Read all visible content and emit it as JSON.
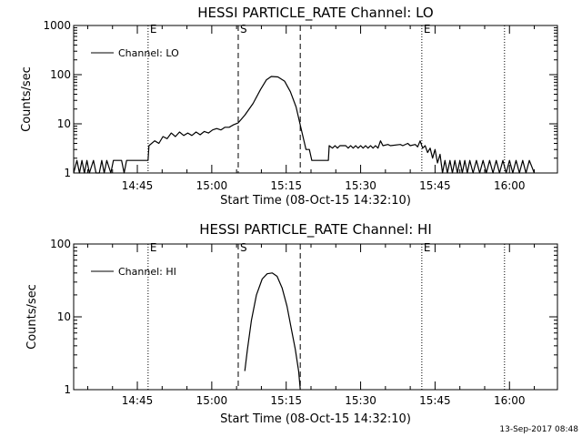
{
  "footer": {
    "timestamp": "13-Sep-2017 08:48"
  },
  "chart_data": [
    {
      "type": "line",
      "title": "HESSI PARTICLE_RATE Channel: LO",
      "xlabel": "Start Time (08-Oct-15 14:32:10)",
      "ylabel": "Counts/sec",
      "xlim": [
        "14:32:10",
        "16:09:40"
      ],
      "ylim": [
        1,
        1000
      ],
      "yscale": "log",
      "x_ticks": [
        "14:45",
        "15:00",
        "15:15",
        "15:30",
        "15:45",
        "16:00"
      ],
      "y_ticks": [
        {
          "value": 1,
          "label": "1"
        },
        {
          "value": 10,
          "label": "10"
        },
        {
          "value": 100,
          "label": "100"
        },
        {
          "value": 1000,
          "label": "1000"
        }
      ],
      "legend": {
        "placement": "top-left",
        "entries": [
          "Channel: LO"
        ]
      },
      "vlines": [
        {
          "time": "14:47:10",
          "style": "dotted",
          "label": "E"
        },
        {
          "time": "15:05:20",
          "style": "dashed",
          "label": "S"
        },
        {
          "time": "15:17:50",
          "style": "dashed",
          "label": ""
        },
        {
          "time": "15:42:20",
          "style": "dotted",
          "label": "E"
        },
        {
          "time": "15:59:00",
          "style": "dotted",
          "label": ""
        }
      ],
      "series": [
        {
          "name": "Channel: LO",
          "points": [
            [
              "14:32:10",
              1
            ],
            [
              "14:32:50",
              1.8
            ],
            [
              "14:33:20",
              1
            ],
            [
              "14:33:50",
              1.8
            ],
            [
              "14:34:20",
              1
            ],
            [
              "14:34:50",
              1.8
            ],
            [
              "14:35:20",
              1
            ],
            [
              "14:36:10",
              1.8
            ],
            [
              "14:36:40",
              1
            ],
            [
              "14:37:20",
              1
            ],
            [
              "14:37:50",
              1.8
            ],
            [
              "14:38:20",
              1
            ],
            [
              "14:38:50",
              1.8
            ],
            [
              "14:39:40",
              1
            ],
            [
              "14:40:10",
              1.8
            ],
            [
              "14:41:50",
              1.8
            ],
            [
              "14:42:20",
              1
            ],
            [
              "14:42:50",
              1.8
            ],
            [
              "14:47:10",
              1.8
            ],
            [
              "14:47:20",
              3.6
            ],
            [
              "14:48:30",
              4.5
            ],
            [
              "14:49:20",
              4
            ],
            [
              "14:50:10",
              5.5
            ],
            [
              "14:51:00",
              5
            ],
            [
              "14:51:50",
              6.5
            ],
            [
              "14:52:40",
              5.5
            ],
            [
              "14:53:30",
              6.8
            ],
            [
              "14:54:20",
              5.8
            ],
            [
              "14:55:10",
              6.5
            ],
            [
              "14:56:00",
              5.8
            ],
            [
              "14:56:50",
              6.8
            ],
            [
              "14:57:40",
              6
            ],
            [
              "14:58:30",
              7
            ],
            [
              "14:59:20",
              6.5
            ],
            [
              "15:00:10",
              7.5
            ],
            [
              "15:01:00",
              8
            ],
            [
              "15:01:50",
              7.5
            ],
            [
              "15:02:40",
              8.5
            ],
            [
              "15:03:30",
              8.5
            ],
            [
              "15:04:20",
              9.5
            ],
            [
              "15:05:20",
              10.5
            ],
            [
              "15:06:40",
              15
            ],
            [
              "15:08:20",
              26
            ],
            [
              "15:09:50",
              50
            ],
            [
              "15:11:00",
              78
            ],
            [
              "15:12:00",
              92
            ],
            [
              "15:13:20",
              90
            ],
            [
              "15:14:40",
              74
            ],
            [
              "15:15:50",
              45
            ],
            [
              "15:17:00",
              22
            ],
            [
              "15:18:00",
              8
            ],
            [
              "15:19:00",
              3
            ],
            [
              "15:19:40",
              3
            ],
            [
              "15:20:10",
              1.8
            ],
            [
              "15:23:30",
              1.8
            ],
            [
              "15:23:40",
              3.6
            ],
            [
              "15:24:20",
              3.2
            ],
            [
              "15:24:50",
              3.6
            ],
            [
              "15:25:20",
              3.2
            ],
            [
              "15:25:50",
              3.6
            ],
            [
              "15:27:00",
              3.6
            ],
            [
              "15:27:30",
              3.2
            ],
            [
              "15:28:00",
              3.6
            ],
            [
              "15:28:30",
              3.2
            ],
            [
              "15:29:00",
              3.6
            ],
            [
              "15:29:30",
              3.2
            ],
            [
              "15:30:00",
              3.6
            ],
            [
              "15:30:30",
              3.2
            ],
            [
              "15:31:00",
              3.6
            ],
            [
              "15:31:30",
              3.2
            ],
            [
              "15:32:00",
              3.6
            ],
            [
              "15:32:30",
              3.2
            ],
            [
              "15:33:00",
              3.6
            ],
            [
              "15:33:30",
              3.2
            ],
            [
              "15:34:00",
              4.5
            ],
            [
              "15:34:30",
              3.6
            ],
            [
              "15:35:30",
              3.8
            ],
            [
              "15:36:00",
              3.6
            ],
            [
              "15:38:00",
              3.8
            ],
            [
              "15:38:30",
              3.6
            ],
            [
              "15:39:30",
              4
            ],
            [
              "15:40:00",
              3.6
            ],
            [
              "15:41:00",
              3.8
            ],
            [
              "15:41:30",
              3.4
            ],
            [
              "15:42:00",
              4.5
            ],
            [
              "15:42:30",
              3.2
            ],
            [
              "15:43:00",
              3.6
            ],
            [
              "15:43:30",
              2.6
            ],
            [
              "15:44:00",
              3.2
            ],
            [
              "15:44:30",
              2
            ],
            [
              "15:45:00",
              3
            ],
            [
              "15:45:30",
              1.6
            ],
            [
              "15:46:00",
              2.4
            ],
            [
              "15:46:30",
              1
            ],
            [
              "15:47:00",
              1.8
            ],
            [
              "15:47:30",
              1
            ],
            [
              "15:48:00",
              1.8
            ],
            [
              "15:48:30",
              1
            ],
            [
              "15:49:00",
              1.8
            ],
            [
              "15:49:30",
              1
            ],
            [
              "15:50:00",
              1.8
            ],
            [
              "15:50:30",
              1
            ],
            [
              "15:51:00",
              1.8
            ],
            [
              "15:51:30",
              1
            ],
            [
              "15:52:00",
              1.8
            ],
            [
              "15:52:40",
              1
            ],
            [
              "15:53:20",
              1.8
            ],
            [
              "15:54:00",
              1
            ],
            [
              "15:54:40",
              1.8
            ],
            [
              "15:55:20",
              1
            ],
            [
              "15:56:00",
              1.8
            ],
            [
              "15:56:40",
              1
            ],
            [
              "15:57:20",
              1.8
            ],
            [
              "15:58:00",
              1
            ],
            [
              "15:58:40",
              1.8
            ],
            [
              "15:59:20",
              1
            ],
            [
              "16:00:00",
              1.8
            ],
            [
              "16:00:40",
              1
            ],
            [
              "16:01:20",
              1.8
            ],
            [
              "16:02:00",
              1
            ],
            [
              "16:02:40",
              1.8
            ],
            [
              "16:03:20",
              1
            ],
            [
              "16:04:00",
              1.8
            ],
            [
              "16:05:00",
              1
            ]
          ]
        }
      ]
    },
    {
      "type": "line",
      "title": "HESSI PARTICLE_RATE Channel: HI",
      "xlabel": "Start Time (08-Oct-15 14:32:10)",
      "ylabel": "Counts/sec",
      "xlim": [
        "14:32:10",
        "16:09:40"
      ],
      "ylim": [
        1,
        100
      ],
      "yscale": "log",
      "x_ticks": [
        "14:45",
        "15:00",
        "15:15",
        "15:30",
        "15:45",
        "16:00"
      ],
      "y_ticks": [
        {
          "value": 1,
          "label": "1"
        },
        {
          "value": 10,
          "label": "10"
        },
        {
          "value": 100,
          "label": "100"
        }
      ],
      "legend": {
        "placement": "top-left",
        "entries": [
          "Channel: HI"
        ]
      },
      "vlines": [
        {
          "time": "14:47:10",
          "style": "dotted",
          "label": "E"
        },
        {
          "time": "15:05:20",
          "style": "dashed",
          "label": "S"
        },
        {
          "time": "15:17:50",
          "style": "dashed",
          "label": ""
        },
        {
          "time": "15:42:20",
          "style": "dotted",
          "label": "E"
        },
        {
          "time": "15:59:00",
          "style": "dotted",
          "label": ""
        }
      ],
      "series": [
        {
          "name": "Channel: HI",
          "points": [
            [
              "15:06:40",
              1.8
            ],
            [
              "15:07:10",
              3.5
            ],
            [
              "15:08:00",
              9
            ],
            [
              "15:09:00",
              20
            ],
            [
              "15:10:10",
              33
            ],
            [
              "15:11:10",
              39
            ],
            [
              "15:12:10",
              40
            ],
            [
              "15:13:10",
              36
            ],
            [
              "15:14:10",
              25
            ],
            [
              "15:15:10",
              14
            ],
            [
              "15:16:00",
              7
            ],
            [
              "15:16:50",
              3.6
            ],
            [
              "15:17:30",
              1.8
            ],
            [
              "15:17:50",
              1
            ]
          ]
        }
      ]
    }
  ]
}
